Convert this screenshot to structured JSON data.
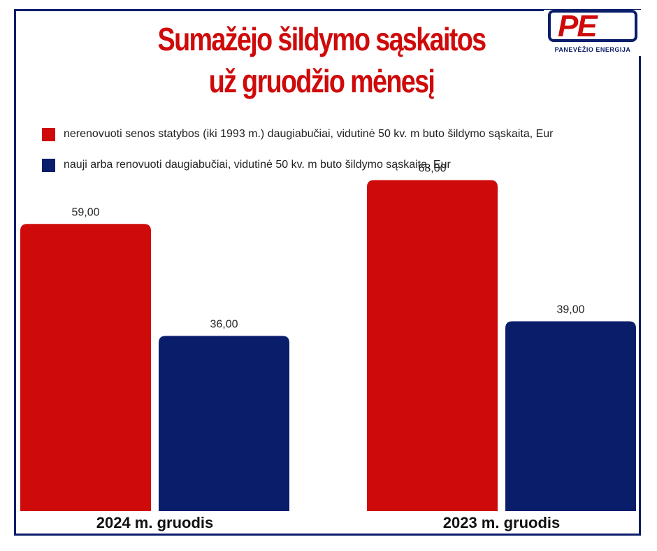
{
  "title_lines": [
    "Sumažėjo šildymo sąskaitos",
    "už gruodžio mėnesį"
  ],
  "logo": {
    "letters": "PE",
    "name": "PANEVĖŽIO ENERGIJA",
    "icon": "pe-logo-icon"
  },
  "colors": {
    "red": "#cf0a0a",
    "navy": "#0a1d6b",
    "frame": "#0a1d6b"
  },
  "chart_data": {
    "type": "bar",
    "categories": [
      "2024 m. gruodis",
      "2023 m. gruodis"
    ],
    "series": [
      {
        "name": "nerenovuoti senos statybos (iki 1993 m.) daugiabučiai, vidutinė 50 kv. m buto šildymo sąskaita, Eur",
        "values": [
          59.0,
          68.0
        ],
        "labels": [
          "59,00",
          "68,00"
        ],
        "color": "#cf0a0a"
      },
      {
        "name": "nauji arba renovuoti daugiabučiai, vidutinė 50 kv. m buto šildymo sąskaita, Eur",
        "values": [
          36.0,
          39.0
        ],
        "labels": [
          "36,00",
          "39,00"
        ],
        "color": "#0a1d6b"
      }
    ],
    "ylim": [
      0,
      77
    ],
    "grid": false,
    "legend_position": "top-left"
  }
}
